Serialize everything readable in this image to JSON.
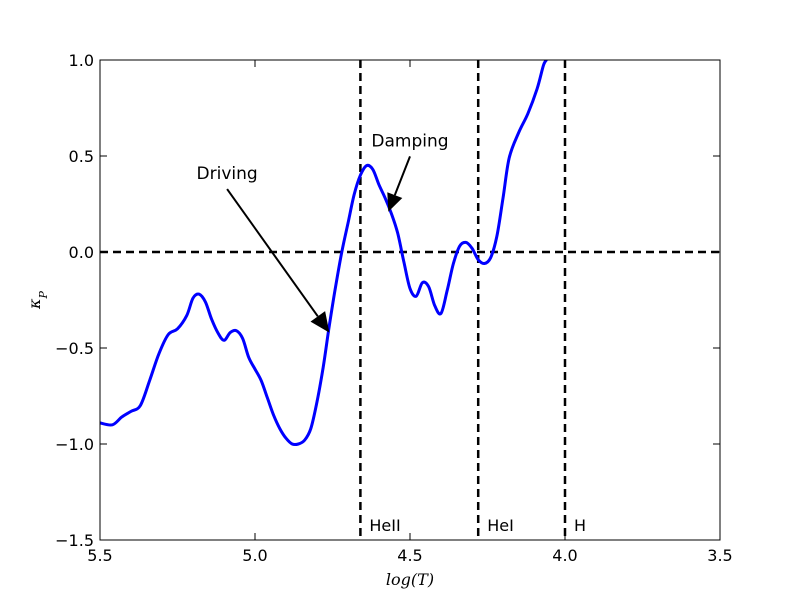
{
  "chart_data": {
    "type": "line",
    "title": "",
    "xlabel": "log(T)",
    "ylabel": "κ_P",
    "xlim": [
      5.5,
      3.5
    ],
    "ylim": [
      -1.5,
      1.0
    ],
    "x_inverted": true,
    "xticks": [
      5.5,
      5.0,
      4.5,
      4.0,
      3.5
    ],
    "xtick_labels": [
      "5.5",
      "5.0",
      "4.5",
      "4.0",
      "3.5"
    ],
    "yticks": [
      -1.5,
      -1.0,
      -0.5,
      0.0,
      0.5,
      1.0
    ],
    "ytick_labels": [
      "−1.5",
      "−1.0",
      "−0.5",
      "0.0",
      "0.5",
      "1.0"
    ],
    "grid": false,
    "series": [
      {
        "color": "#0000ff",
        "points": [
          [
            5.5,
            -0.89
          ],
          [
            5.46,
            -0.9
          ],
          [
            5.43,
            -0.86
          ],
          [
            5.4,
            -0.83
          ],
          [
            5.37,
            -0.8
          ],
          [
            5.34,
            -0.67
          ],
          [
            5.31,
            -0.53
          ],
          [
            5.28,
            -0.43
          ],
          [
            5.25,
            -0.4
          ],
          [
            5.22,
            -0.33
          ],
          [
            5.2,
            -0.24
          ],
          [
            5.18,
            -0.22
          ],
          [
            5.16,
            -0.26
          ],
          [
            5.14,
            -0.35
          ],
          [
            5.12,
            -0.42
          ],
          [
            5.1,
            -0.46
          ],
          [
            5.08,
            -0.42
          ],
          [
            5.06,
            -0.41
          ],
          [
            5.04,
            -0.45
          ],
          [
            5.02,
            -0.55
          ],
          [
            5.0,
            -0.61
          ],
          [
            4.98,
            -0.67
          ],
          [
            4.96,
            -0.76
          ],
          [
            4.94,
            -0.85
          ],
          [
            4.92,
            -0.92
          ],
          [
            4.9,
            -0.97
          ],
          [
            4.88,
            -1.0
          ],
          [
            4.86,
            -1.0
          ],
          [
            4.84,
            -0.98
          ],
          [
            4.82,
            -0.92
          ],
          [
            4.8,
            -0.78
          ],
          [
            4.78,
            -0.6
          ],
          [
            4.76,
            -0.38
          ],
          [
            4.74,
            -0.18
          ],
          [
            4.72,
            0.0
          ],
          [
            4.7,
            0.15
          ],
          [
            4.68,
            0.3
          ],
          [
            4.66,
            0.4
          ],
          [
            4.64,
            0.45
          ],
          [
            4.62,
            0.43
          ],
          [
            4.6,
            0.35
          ],
          [
            4.58,
            0.28
          ],
          [
            4.56,
            0.2
          ],
          [
            4.54,
            0.1
          ],
          [
            4.52,
            -0.05
          ],
          [
            4.5,
            -0.19
          ],
          [
            4.48,
            -0.23
          ],
          [
            4.46,
            -0.16
          ],
          [
            4.44,
            -0.18
          ],
          [
            4.42,
            -0.28
          ],
          [
            4.4,
            -0.32
          ],
          [
            4.38,
            -0.2
          ],
          [
            4.36,
            -0.06
          ],
          [
            4.34,
            0.03
          ],
          [
            4.32,
            0.05
          ],
          [
            4.3,
            0.02
          ],
          [
            4.28,
            -0.04
          ],
          [
            4.26,
            -0.06
          ],
          [
            4.24,
            -0.03
          ],
          [
            4.22,
            0.08
          ],
          [
            4.2,
            0.28
          ],
          [
            4.18,
            0.49
          ],
          [
            4.15,
            0.62
          ],
          [
            4.12,
            0.72
          ],
          [
            4.09,
            0.85
          ],
          [
            4.07,
            0.97
          ],
          [
            4.06,
            1.0
          ]
        ]
      }
    ],
    "reference_lines": {
      "horizontal": [
        {
          "y": 0.0,
          "style": "dashed",
          "color": "#000000"
        }
      ],
      "vertical": [
        {
          "x": 4.66,
          "label": "HeII",
          "style": "dashed",
          "color": "#000000"
        },
        {
          "x": 4.28,
          "label": "HeI",
          "style": "dashed",
          "color": "#000000"
        },
        {
          "x": 4.0,
          "label": "H",
          "style": "dashed",
          "color": "#000000"
        }
      ]
    },
    "annotations": [
      {
        "text": "Driving",
        "text_at": [
          5.09,
          0.38
        ],
        "arrow_to": [
          4.76,
          -0.42
        ]
      },
      {
        "text": "Damping",
        "text_at": [
          4.5,
          0.55
        ],
        "arrow_to": [
          4.57,
          0.21
        ]
      }
    ]
  }
}
